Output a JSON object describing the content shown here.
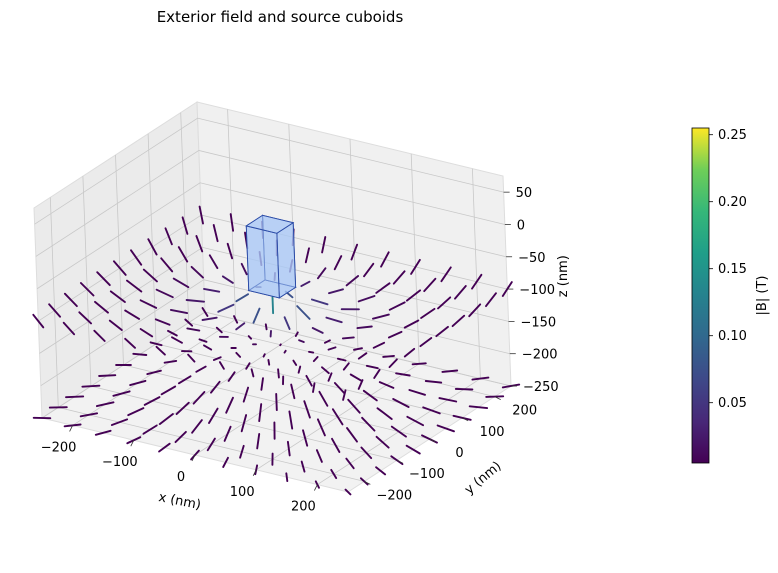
{
  "chart_data": {
    "type": "3d-quiver",
    "title": "Exterior field and source cuboids",
    "xlabel": "x (nm)",
    "ylabel": "y (nm)",
    "zlabel": "z (nm)",
    "xlim": [
      -250,
      250
    ],
    "ylim": [
      -250,
      250
    ],
    "zlim": [
      -250,
      75
    ],
    "x_ticks": [
      "−200",
      "−100",
      "0",
      "100",
      "200"
    ],
    "y_ticks": [
      "−200",
      "−100",
      "0",
      "100",
      "200"
    ],
    "z_ticks": [
      "−250",
      "−200",
      "−150",
      "−100",
      "−50",
      "0",
      "50"
    ],
    "x_tick_values": [
      -200,
      -100,
      0,
      100,
      200
    ],
    "y_tick_values": [
      -200,
      -100,
      0,
      100,
      200
    ],
    "z_tick_values": [
      -250,
      -200,
      -150,
      -100,
      -50,
      0,
      50
    ],
    "grid": true,
    "colormap": "viridis",
    "colorbar": {
      "label": "|B| (T)",
      "range": [
        0.005,
        0.255
      ],
      "ticks": [
        "0.05",
        "0.10",
        "0.15",
        "0.20",
        "0.25"
      ],
      "tick_values": [
        0.05,
        0.1,
        0.15,
        0.2,
        0.25
      ]
    },
    "source_cuboid": {
      "x_range": [
        -25,
        25
      ],
      "y_range": [
        -25,
        25
      ],
      "z_range": [
        -75,
        25
      ],
      "face_color": "#a9c8f5",
      "edge_color": "#2a4aa6"
    },
    "field_grid": {
      "x": [
        -250,
        -200,
        -150,
        -100,
        -50,
        0,
        50,
        100,
        150,
        200,
        250
      ],
      "y": [
        -250,
        -200,
        -150,
        -100,
        -50,
        0,
        50,
        100,
        150,
        200,
        250
      ],
      "z_planes": [
        -100,
        -250
      ],
      "arrow_length": 25
    }
  }
}
